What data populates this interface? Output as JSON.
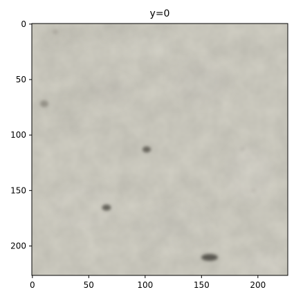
{
  "figure": {
    "title": "y=0"
  },
  "image": {
    "description_colors": {
      "base": "#d1cfc4",
      "speck": "#55524a",
      "shade": "#b9b7ad"
    },
    "x_range": [
      0,
      227
    ],
    "y_range": [
      0,
      227
    ]
  },
  "axes": {
    "x_ticks": [
      "0",
      "50",
      "100",
      "150",
      "200"
    ],
    "y_ticks": [
      "0",
      "50",
      "100",
      "150",
      "200"
    ],
    "x_tick_values": [
      0,
      50,
      100,
      150,
      200
    ],
    "y_tick_values": [
      0,
      50,
      100,
      150,
      200
    ]
  }
}
